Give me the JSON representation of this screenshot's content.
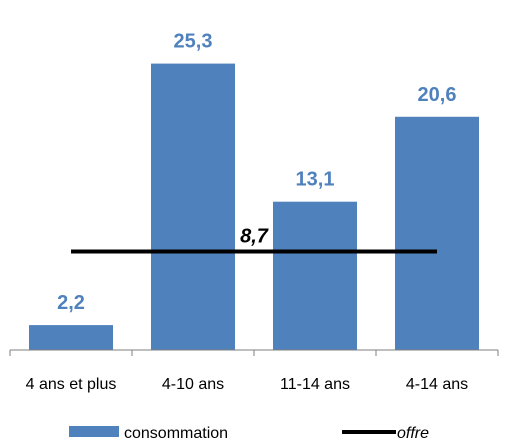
{
  "chart_data": {
    "type": "bar",
    "categories": [
      "4 ans et plus",
      "4-10 ans",
      "11-14 ans",
      "4-14 ans"
    ],
    "series": [
      {
        "name": "consommation",
        "values": [
          2.2,
          25.3,
          13.1,
          20.6
        ],
        "color": "#4f81bd",
        "labels": [
          "2,2",
          "25,3",
          "13,1",
          "20,6"
        ]
      }
    ],
    "reference_line": {
      "name": "offre",
      "value": 8.7,
      "label": "8,7",
      "color": "#000000"
    },
    "ylim": [
      0,
      26.5
    ],
    "grid": false,
    "legend": {
      "position": "bottom",
      "items": [
        "consommation",
        "offre"
      ]
    }
  }
}
